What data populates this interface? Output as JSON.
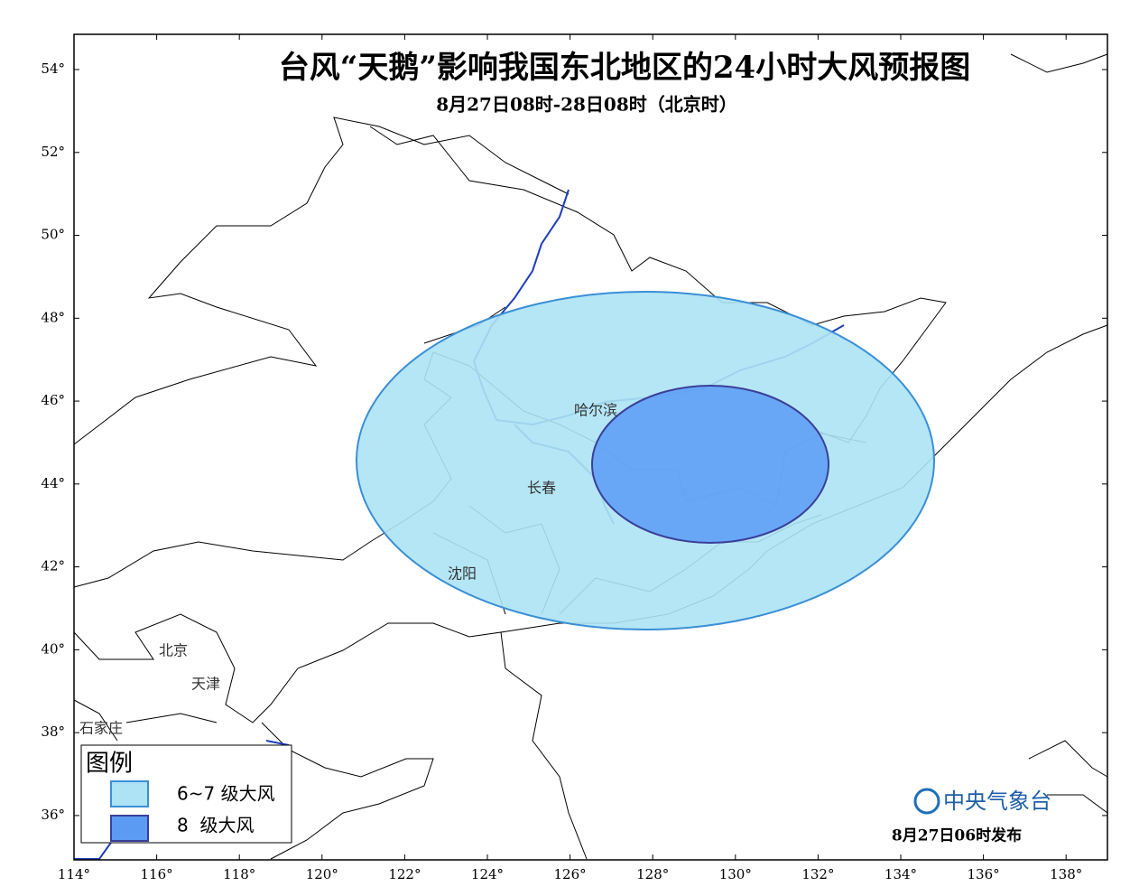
{
  "map": {
    "title": "台风“天鹅”影响我国东北地区的24小时大风预报图",
    "subtitle": "8月27日08时-28日08时（北京时）",
    "lonlim": [
      114,
      139
    ],
    "latlim": [
      34.93,
      54.85
    ],
    "lon_ticks": [
      {
        "value": 114,
        "label": "114°"
      },
      {
        "value": 116,
        "label": "116°"
      },
      {
        "value": 118,
        "label": "118°"
      },
      {
        "value": 120,
        "label": "120°"
      },
      {
        "value": 122,
        "label": "122°"
      },
      {
        "value": 124,
        "label": "124°"
      },
      {
        "value": 126,
        "label": "126°"
      },
      {
        "value": 128,
        "label": "128°"
      },
      {
        "value": 130,
        "label": "130°"
      },
      {
        "value": 132,
        "label": "132°"
      },
      {
        "value": 134,
        "label": "134°"
      },
      {
        "value": 136,
        "label": "136°"
      },
      {
        "value": 138,
        "label": "138°"
      }
    ],
    "lat_ticks": [
      {
        "value": 36,
        "label": "36°"
      },
      {
        "value": 38,
        "label": "38°"
      },
      {
        "value": 40,
        "label": "40°"
      },
      {
        "value": 42,
        "label": "42°"
      },
      {
        "value": 44,
        "label": "44°"
      },
      {
        "value": 46,
        "label": "46°"
      },
      {
        "value": 48,
        "label": "48°"
      },
      {
        "value": 50,
        "label": "50°"
      },
      {
        "value": 52,
        "label": "52°"
      },
      {
        "value": 54,
        "label": "54°"
      }
    ],
    "cities": [
      "哈尔滨",
      "长春",
      "沈阳",
      "北京",
      "天津",
      "石家庄"
    ],
    "legend": {
      "title": "图例",
      "items": [
        "6~7 级大风",
        "8  级大风"
      ]
    },
    "agency": "中央气象台",
    "issued": "8月27日06时发布"
  }
}
